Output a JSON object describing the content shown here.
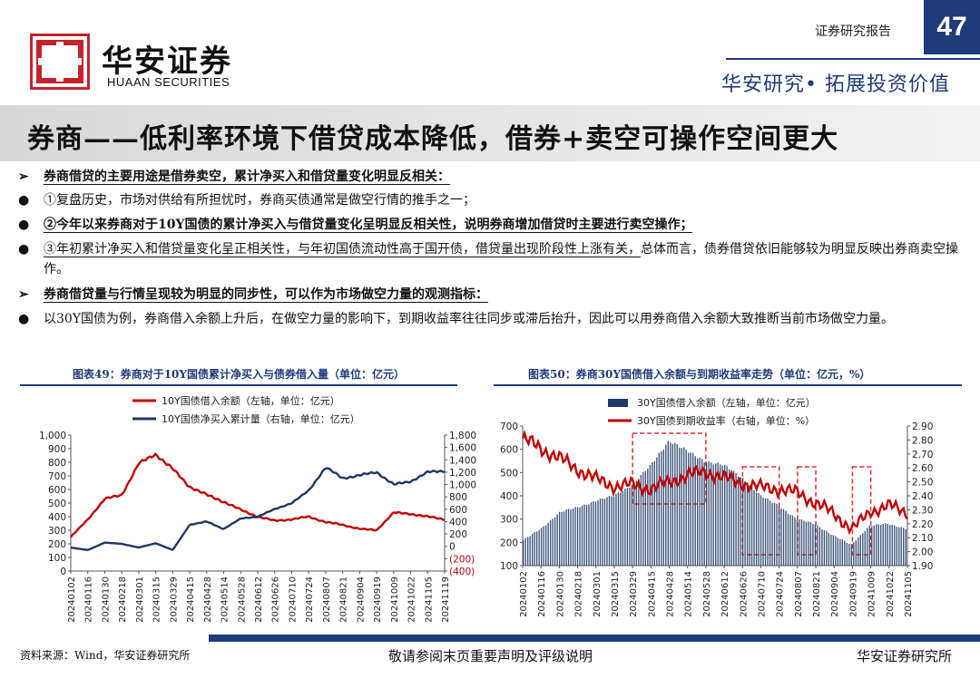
{
  "header": {
    "logo_cn": "华安证券",
    "logo_en": "HUAAN SECURITIES",
    "report_label": "证券研究报告",
    "page_number": "47",
    "slogan": "华安研究• 拓展投资价值"
  },
  "title": "券商——低利率环境下借贷成本降低，借券+卖空可操作空间更大",
  "bullets": [
    {
      "mark": "➢",
      "text": "券商借贷的主要用途是借券卖空，累计净买入和借贷量变化明显反相关：",
      "bold": true
    },
    {
      "mark": "●",
      "text": "①复盘历史，市场对供给有所担忧时，券商买债通常是做空行情的推手之一；",
      "bold": false
    },
    {
      "mark": "●",
      "text": "②今年以来券商对于10Y国债的累计净买入与借贷量变化呈明显反相关性，说明券商增加借贷时主要进行卖空操作；",
      "bold": true
    },
    {
      "mark": "●",
      "text_a": "③年初累计净买入和借贷量变化呈正相关性，与年初国债流动性高于国开债，借贷量出现阶段性上涨有关，",
      "text_b": "总体而言，债券借贷依旧能够较为明显反映出券商卖空操作。",
      "bold": false
    },
    {
      "mark": "➢",
      "text": "券商借贷量与行情呈现较为明显的同步性，可以作为市场做空力量的观测指标：",
      "bold": true
    },
    {
      "mark": "●",
      "text": "以30Y国债为例，券商借入余额上升后，在做空力量的影响下，到期收益率往往同步或滞后抬升，因此可以用券商借入余额大致推断当前市场做空力量。",
      "bold": false
    }
  ],
  "charts": {
    "left_title": "图表49：券商对于10Y国债累计净买入与债券借入量（单位：亿元）",
    "right_title": "图表50：券商30Y国债借入余额与到期收益率走势（单位：亿元，%）"
  },
  "chart_data": [
    {
      "type": "line",
      "legend": [
        "10Y国债借入余额（左轴，单位：亿元）",
        "10Y国债净买入累计量（右轴，单位：亿元）"
      ],
      "x": [
        "20240102",
        "20240116",
        "20240130",
        "20240218",
        "20240301",
        "20240315",
        "20240329",
        "20240415",
        "20240428",
        "20240514",
        "20240528",
        "20240612",
        "20240626",
        "20240710",
        "20240724",
        "20240807",
        "20240821",
        "20240904",
        "20240919",
        "20241009",
        "20241022",
        "20241105",
        "20241119"
      ],
      "series": [
        {
          "name": "10Y国债借入余额（左轴，单位：亿元）",
          "color": "#c00000",
          "axis": "left",
          "values": [
            250,
            380,
            530,
            560,
            790,
            860,
            750,
            620,
            560,
            510,
            450,
            400,
            370,
            380,
            400,
            360,
            340,
            310,
            300,
            430,
            420,
            400,
            380
          ]
        },
        {
          "name": "10Y国债净买入累计量（右轴，单位：亿元）",
          "color": "#1f3864",
          "axis": "right",
          "values": [
            -20,
            -60,
            60,
            40,
            -20,
            50,
            -60,
            350,
            400,
            280,
            450,
            480,
            600,
            700,
            900,
            1280,
            1100,
            1150,
            1200,
            1000,
            1050,
            1200,
            1220
          ]
        }
      ],
      "left_axis": {
        "ticks": [
          "1,000",
          "900",
          "800",
          "700",
          "600",
          "500",
          "400",
          "300",
          "200",
          "100",
          "0"
        ],
        "ylim": [
          0,
          1000
        ]
      },
      "right_axis": {
        "ticks": [
          "1,800",
          "1,600",
          "1,400",
          "1,200",
          "1,000",
          "800",
          "600",
          "400",
          "200",
          "0",
          "(200)",
          "(400)"
        ],
        "ylim": [
          -400,
          1800
        ]
      }
    },
    {
      "type": "bar",
      "legend": [
        "30Y国债借入余额（左轴，单位：亿元）",
        "30Y国债到期收益率（右轴，单位：%）"
      ],
      "x": [
        "20240102",
        "20240116",
        "20240130",
        "20240218",
        "20240301",
        "20240315",
        "20240329",
        "20240415",
        "20240428",
        "20240514",
        "20240528",
        "20240612",
        "20240626",
        "20240710",
        "20240724",
        "20240807",
        "20240821",
        "20240904",
        "20240919",
        "20241009",
        "20241022",
        "20241105"
      ],
      "series": [
        {
          "name": "30Y国债借入余额（左轴，单位：亿元）",
          "color": "#1f3864",
          "axis": "left",
          "values": [
            210,
            260,
            330,
            350,
            380,
            400,
            450,
            530,
            640,
            590,
            550,
            530,
            480,
            400,
            360,
            300,
            280,
            230,
            190,
            270,
            280,
            260
          ]
        },
        {
          "name": "30Y国债到期收益率（右轴，单位：%）",
          "color": "#c00000",
          "axis": "right",
          "values": [
            2.81,
            2.74,
            2.67,
            2.59,
            2.52,
            2.47,
            2.48,
            2.45,
            2.5,
            2.55,
            2.57,
            2.53,
            2.49,
            2.46,
            2.45,
            2.42,
            2.35,
            2.27,
            2.16,
            2.29,
            2.33,
            2.28
          ]
        }
      ],
      "left_axis": {
        "ticks": [
          "700",
          "600",
          "500",
          "400",
          "300",
          "200",
          "100"
        ],
        "ylim": [
          100,
          700
        ]
      },
      "right_axis": {
        "ticks": [
          "2.90",
          "2.80",
          "2.70",
          "2.60",
          "2.50",
          "2.40",
          "2.30",
          "2.20",
          "2.10",
          "2.00",
          "1.90"
        ],
        "ylim": [
          1.9,
          2.9
        ]
      },
      "highlight_boxes": [
        [
          "20240329",
          "20240528"
        ],
        [
          "20240626",
          "20240724"
        ],
        [
          "20240807",
          "20240821"
        ],
        [
          "20240919",
          "20241009"
        ]
      ]
    }
  ],
  "footer": {
    "source": "资料来源：Wind，华安证券研究所",
    "disclaimer": "敬请参阅末页重要声明及评级说明",
    "brand": "华安证券研究所"
  }
}
